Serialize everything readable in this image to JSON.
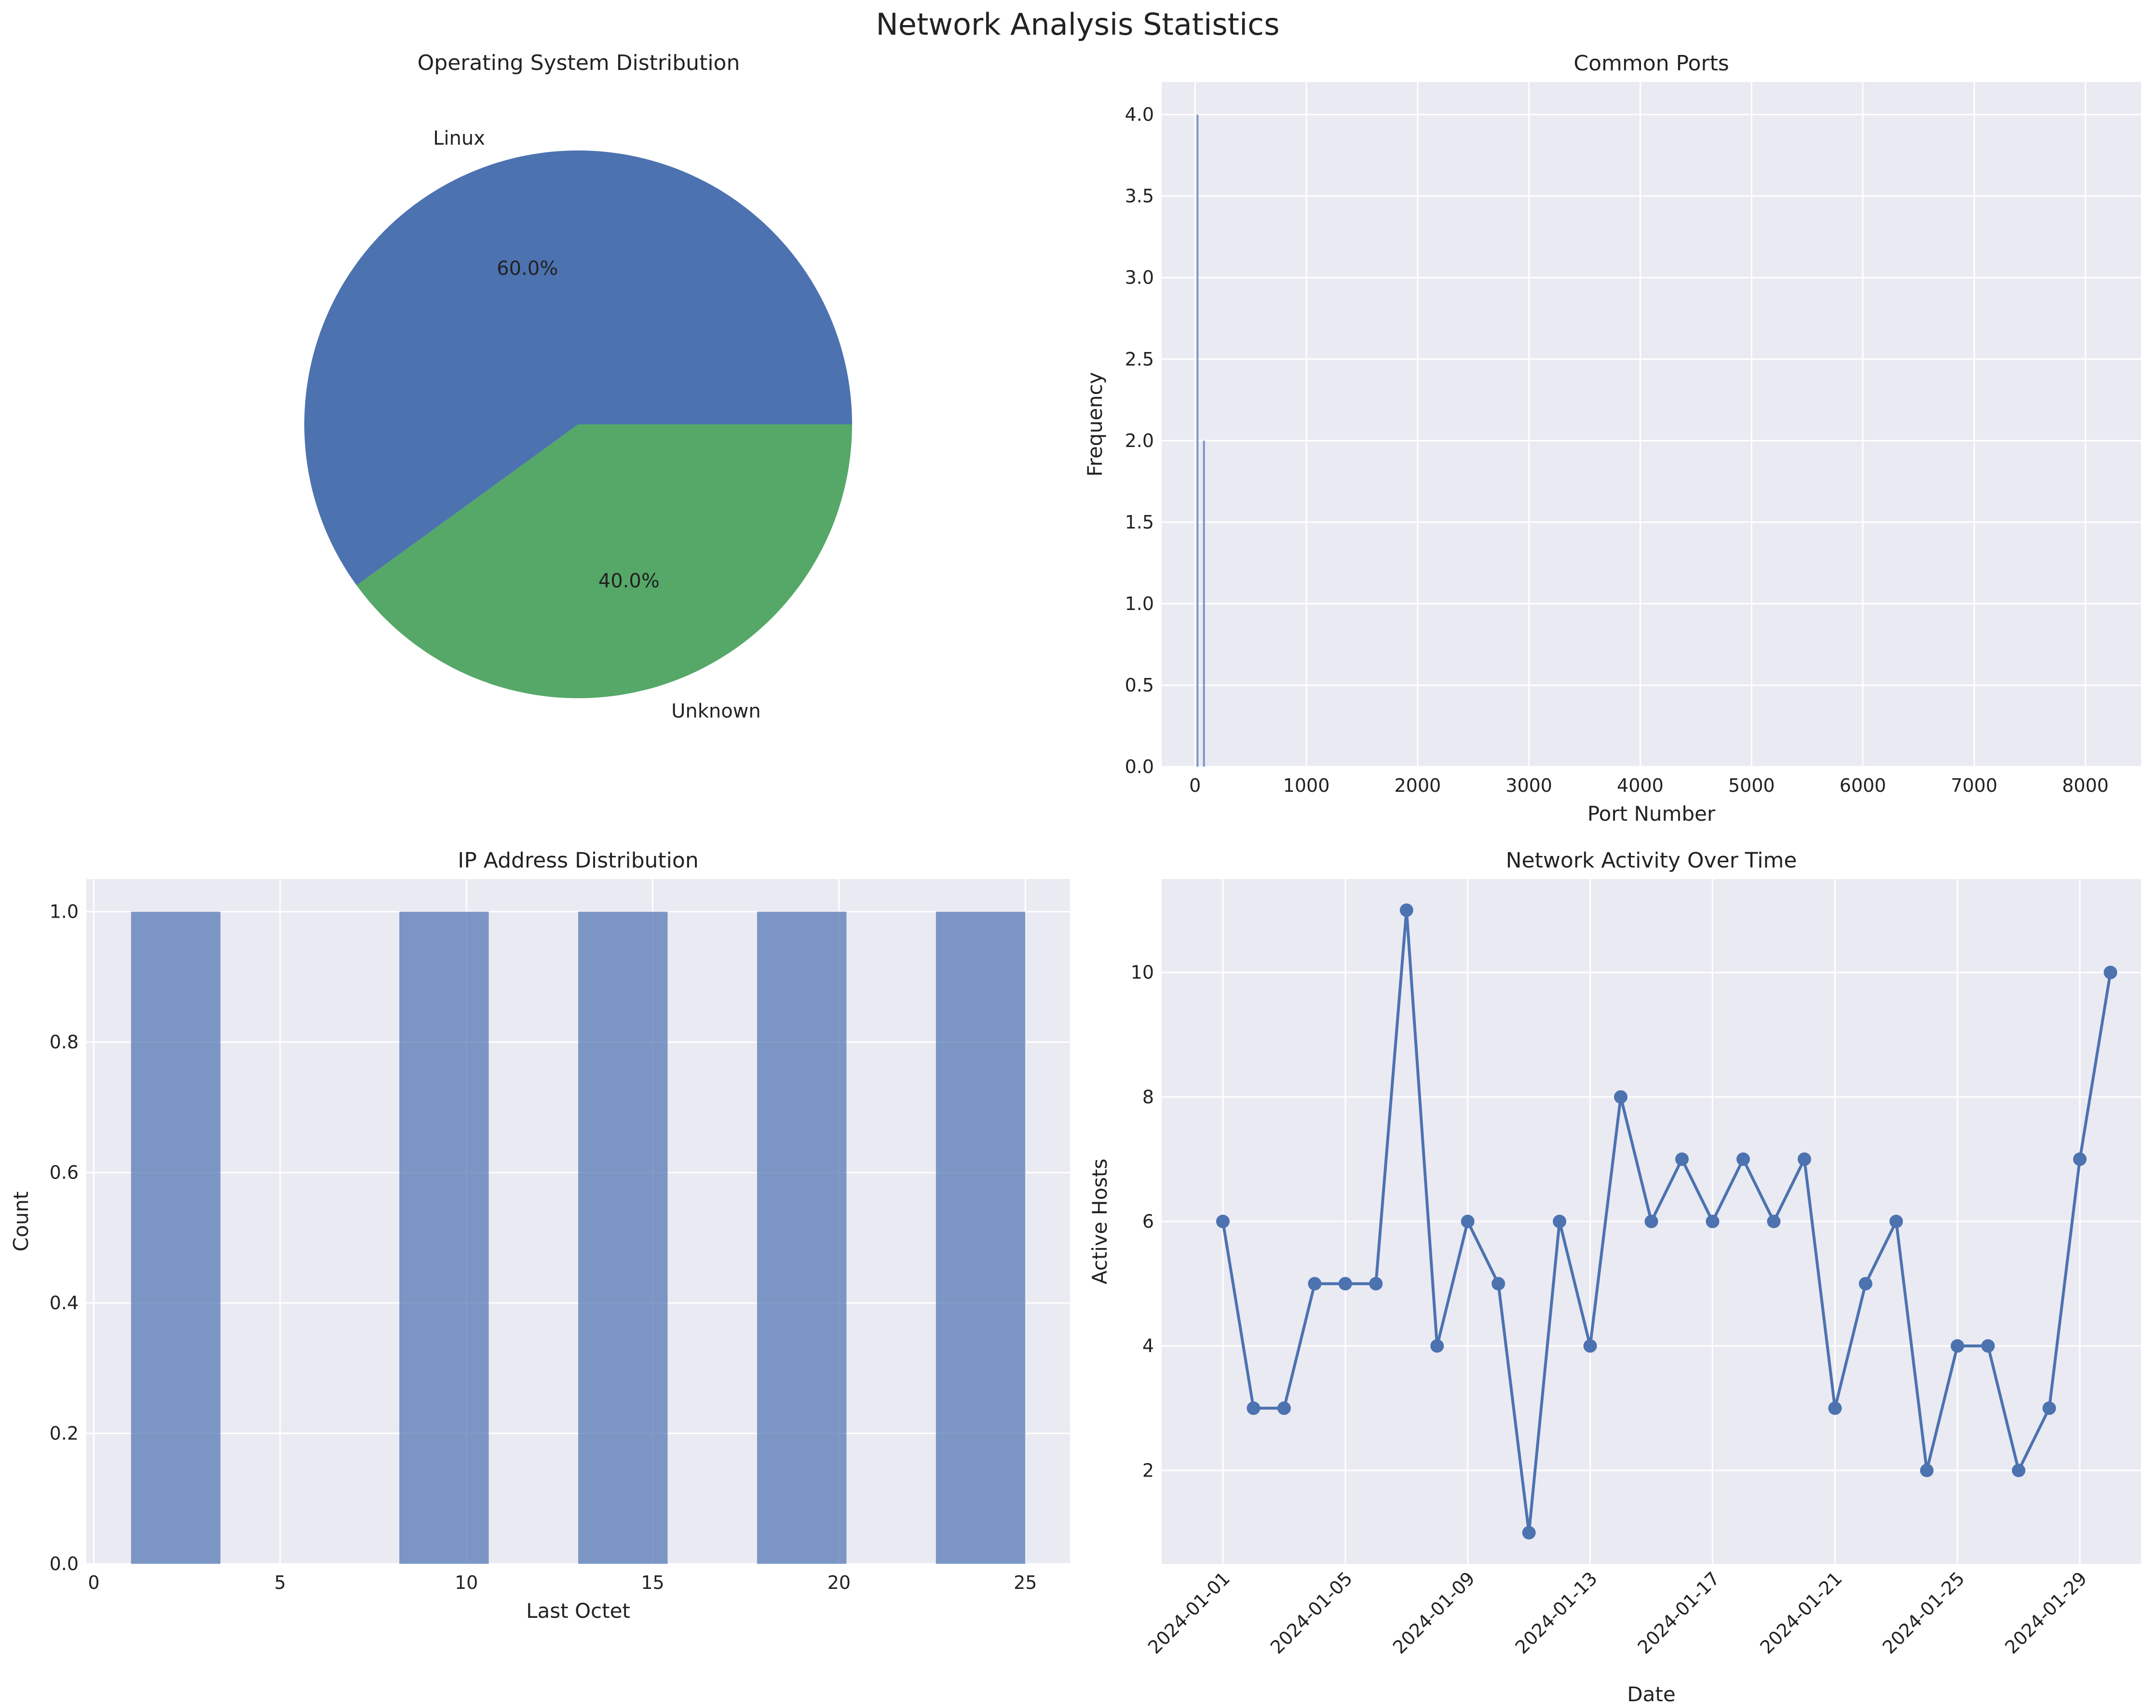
{
  "figure_title": "Network Analysis Statistics",
  "colors": {
    "blue": "#4c72b0",
    "green": "#55a868",
    "plot_bg": "#eaeaf2",
    "grid": "#ffffff",
    "text": "#222222"
  },
  "chart_data": [
    {
      "type": "pie",
      "title": "Operating System Distribution",
      "labels": [
        "Linux",
        "Unknown"
      ],
      "values": [
        60,
        40
      ],
      "autopct": [
        "60.0%",
        "40.0%"
      ],
      "colors": [
        "#4c72b0",
        "#55a868"
      ]
    },
    {
      "type": "bar",
      "title": "Common Ports",
      "xlabel": "Port Number",
      "ylabel": "Frequency",
      "xlim": [
        -300,
        8500
      ],
      "ylim": [
        0,
        4.2
      ],
      "xticks": [
        0,
        1000,
        2000,
        3000,
        4000,
        5000,
        6000,
        7000,
        8000
      ],
      "yticks": [
        "0.0",
        "0.5",
        "1.0",
        "1.5",
        "2.0",
        "2.5",
        "3.0",
        "3.5",
        "4.0"
      ],
      "bars": [
        {
          "x": 80,
          "value": 2
        },
        {
          "x": 22,
          "value": 4
        }
      ],
      "grid": true
    },
    {
      "type": "bar",
      "title": "IP Address Distribution",
      "xlabel": "Last Octet",
      "ylabel": "Count",
      "xlim": [
        -0.2,
        26.2
      ],
      "ylim": [
        0,
        1.05
      ],
      "xticks": [
        0,
        5,
        10,
        15,
        20,
        25
      ],
      "yticks": [
        "0.0",
        "0.2",
        "0.4",
        "0.6",
        "0.8",
        "1.0"
      ],
      "bins": [
        {
          "start": 1.0,
          "end": 3.4,
          "value": 1
        },
        {
          "start": 8.2,
          "end": 10.6,
          "value": 1
        },
        {
          "start": 13.0,
          "end": 15.4,
          "value": 1
        },
        {
          "start": 17.8,
          "end": 20.2,
          "value": 1
        },
        {
          "start": 22.6,
          "end": 25.0,
          "value": 1
        }
      ],
      "grid": true
    },
    {
      "type": "line",
      "title": "Network Activity Over Time",
      "xlabel": "Date",
      "ylabel": "Active Hosts",
      "x": [
        "2024-01-01",
        "2024-01-02",
        "2024-01-03",
        "2024-01-04",
        "2024-01-05",
        "2024-01-06",
        "2024-01-07",
        "2024-01-08",
        "2024-01-09",
        "2024-01-10",
        "2024-01-11",
        "2024-01-12",
        "2024-01-13",
        "2024-01-14",
        "2024-01-15",
        "2024-01-16",
        "2024-01-17",
        "2024-01-18",
        "2024-01-19",
        "2024-01-20",
        "2024-01-21",
        "2024-01-22",
        "2024-01-23",
        "2024-01-24",
        "2024-01-25",
        "2024-01-26",
        "2024-01-27",
        "2024-01-28",
        "2024-01-29",
        "2024-01-30"
      ],
      "values": [
        6,
        3,
        3,
        5,
        5,
        5,
        11,
        4,
        6,
        5,
        1,
        6,
        4,
        8,
        6,
        7,
        6,
        7,
        6,
        7,
        3,
        5,
        6,
        2,
        4,
        4,
        2,
        3,
        7,
        10
      ],
      "xticks": [
        "2024-01-01",
        "2024-01-05",
        "2024-01-09",
        "2024-01-13",
        "2024-01-17",
        "2024-01-21",
        "2024-01-25",
        "2024-01-29"
      ],
      "xlim": [
        "2023-12-30",
        "2024-01-31"
      ],
      "ylim": [
        0.5,
        11.5
      ],
      "yticks": [
        "2",
        "4",
        "6",
        "8",
        "10"
      ],
      "grid": true,
      "marker": "circle"
    }
  ]
}
